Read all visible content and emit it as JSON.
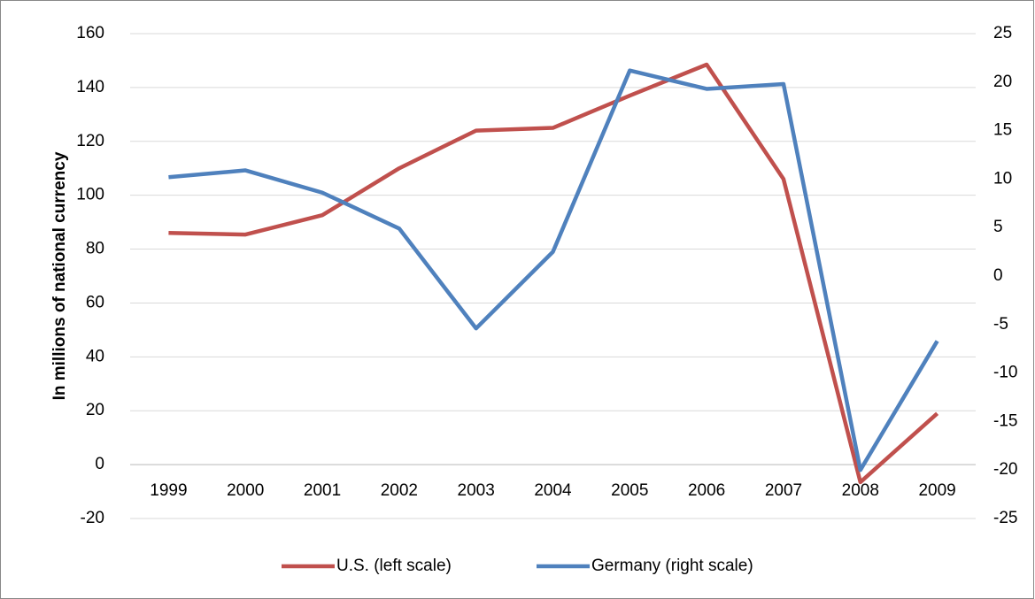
{
  "chart_data": {
    "type": "line",
    "y_axis_label": "In millions of national currency",
    "categories": [
      "1999",
      "2000",
      "2001",
      "2002",
      "2003",
      "2004",
      "2005",
      "2006",
      "2007",
      "2008",
      "2009"
    ],
    "series": [
      {
        "name": "U.S. (left scale)",
        "color": "#c0504d",
        "values": [
          86,
          85.4,
          92.6,
          110,
          124,
          125,
          137,
          148.5,
          106,
          -6.5,
          19
        ]
      },
      {
        "name": "Germany (right scale)",
        "color": "#4f81bd",
        "axis": "y2",
        "values": [
          10.2,
          10.9,
          8.6,
          4.9,
          -5.4,
          2.5,
          21.2,
          19.3,
          19.8,
          -20,
          -6.7
        ]
      }
    ],
    "ylim": [
      -20,
      160
    ],
    "yticks": [
      -20,
      0,
      20,
      40,
      60,
      80,
      100,
      120,
      140,
      160
    ],
    "y2lim": [
      -25,
      25
    ],
    "y2ticks": [
      -25,
      -20,
      -15,
      -10,
      -5,
      0,
      5,
      10,
      15,
      20,
      25
    ],
    "grid": true,
    "legend": "bottom"
  }
}
